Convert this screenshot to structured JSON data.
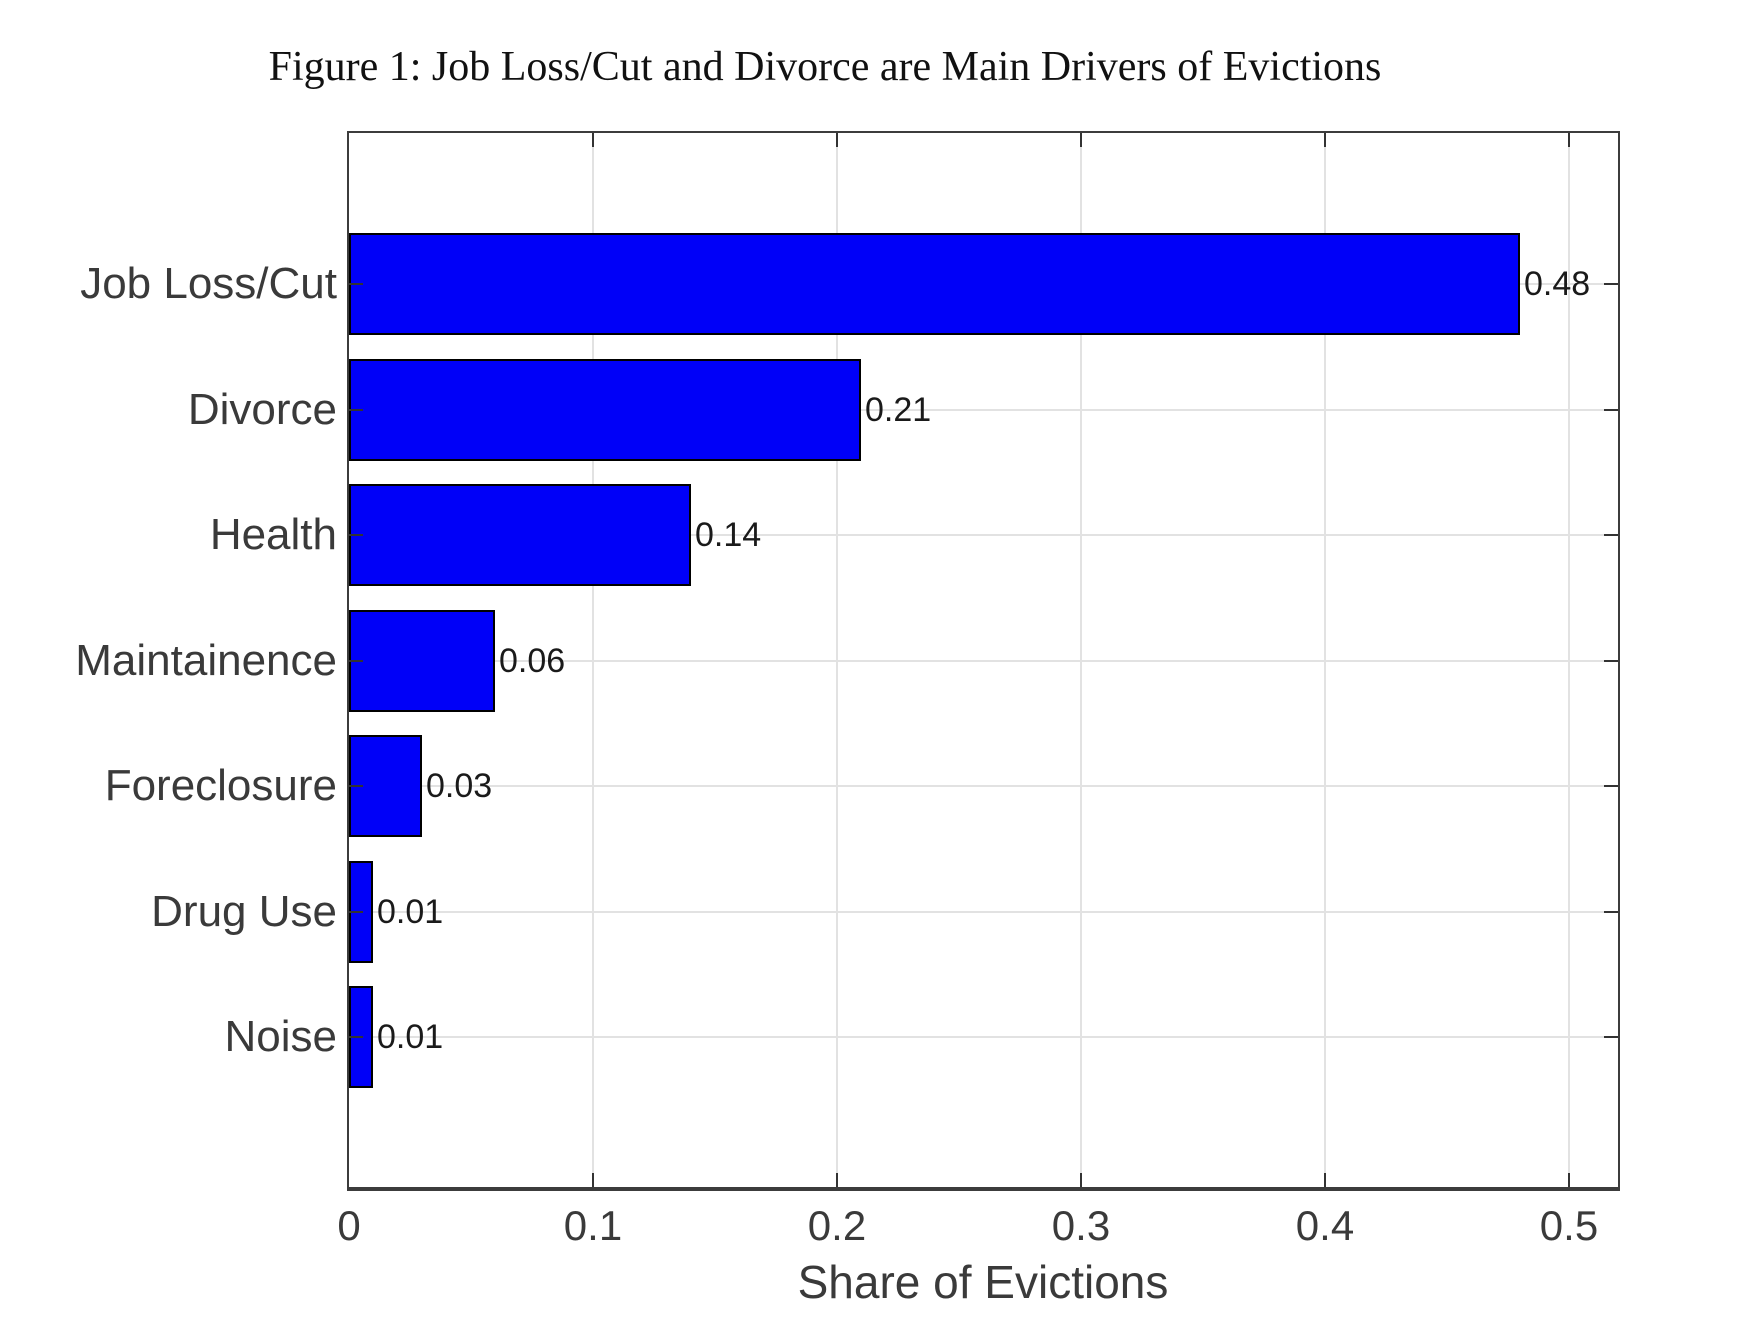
{
  "chart_data": {
    "type": "bar",
    "orientation": "horizontal",
    "title": "Figure 1: Job Loss/Cut and Divorce are Main Drivers of Evictions",
    "xlabel": "Share of Evictions",
    "ylabel": "",
    "categories": [
      "Job Loss/Cut",
      "Divorce",
      "Health",
      "Maintainence",
      "Foreclosure",
      "Drug Use",
      "Noise"
    ],
    "values": [
      0.48,
      0.21,
      0.14,
      0.06,
      0.03,
      0.01,
      0.01
    ],
    "value_labels": [
      "0.48",
      "0.21",
      "0.14",
      "0.06",
      "0.03",
      "0.01",
      "0.01"
    ],
    "xlim": [
      0,
      0.52
    ],
    "xticks": [
      0,
      0.1,
      0.2,
      0.3,
      0.4,
      0.5
    ],
    "xtick_labels": [
      "0",
      "0.1",
      "0.2",
      "0.3",
      "0.4",
      "0.5"
    ],
    "grid": true,
    "legend": "none"
  },
  "colors": {
    "bar_fill": "#0000F8",
    "bar_edge": "#000000",
    "grid": "#E2E2E2",
    "axis": "#3C3C3C",
    "tick": "#333333",
    "category_label": "#3A3A3A",
    "tick_label": "#3A3A3A",
    "value_label": "#1A1A1A",
    "title": "#111111",
    "background": "#FFFFFF"
  }
}
